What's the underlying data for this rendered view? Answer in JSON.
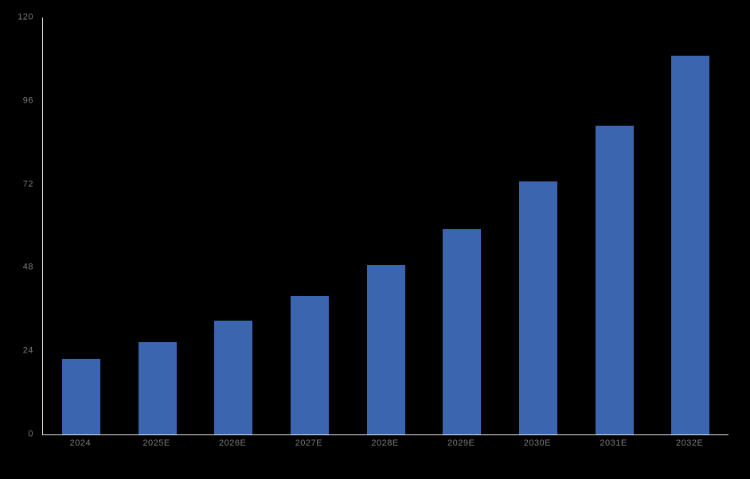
{
  "chart_data": {
    "type": "bar",
    "title": "",
    "categories": [
      "2024",
      "2025E",
      "2026E",
      "2027E",
      "2028E",
      "2029E",
      "2030E",
      "2031E",
      "2032E"
    ],
    "values": [
      21.7,
      26.5,
      32.7,
      39.8,
      48.7,
      59.2,
      72.8,
      88.8,
      108.9
    ],
    "xlabel": "",
    "ylabel": "",
    "ylim": [
      0,
      120
    ],
    "yticks": [
      0,
      24,
      48,
      72,
      96,
      120
    ],
    "grid": false,
    "legend": "none",
    "colors": {
      "background": "#000000",
      "bar_fill": "#3B66AF",
      "axis_line": "#E9E9E9",
      "tick_label": "#7B7B7B"
    }
  }
}
